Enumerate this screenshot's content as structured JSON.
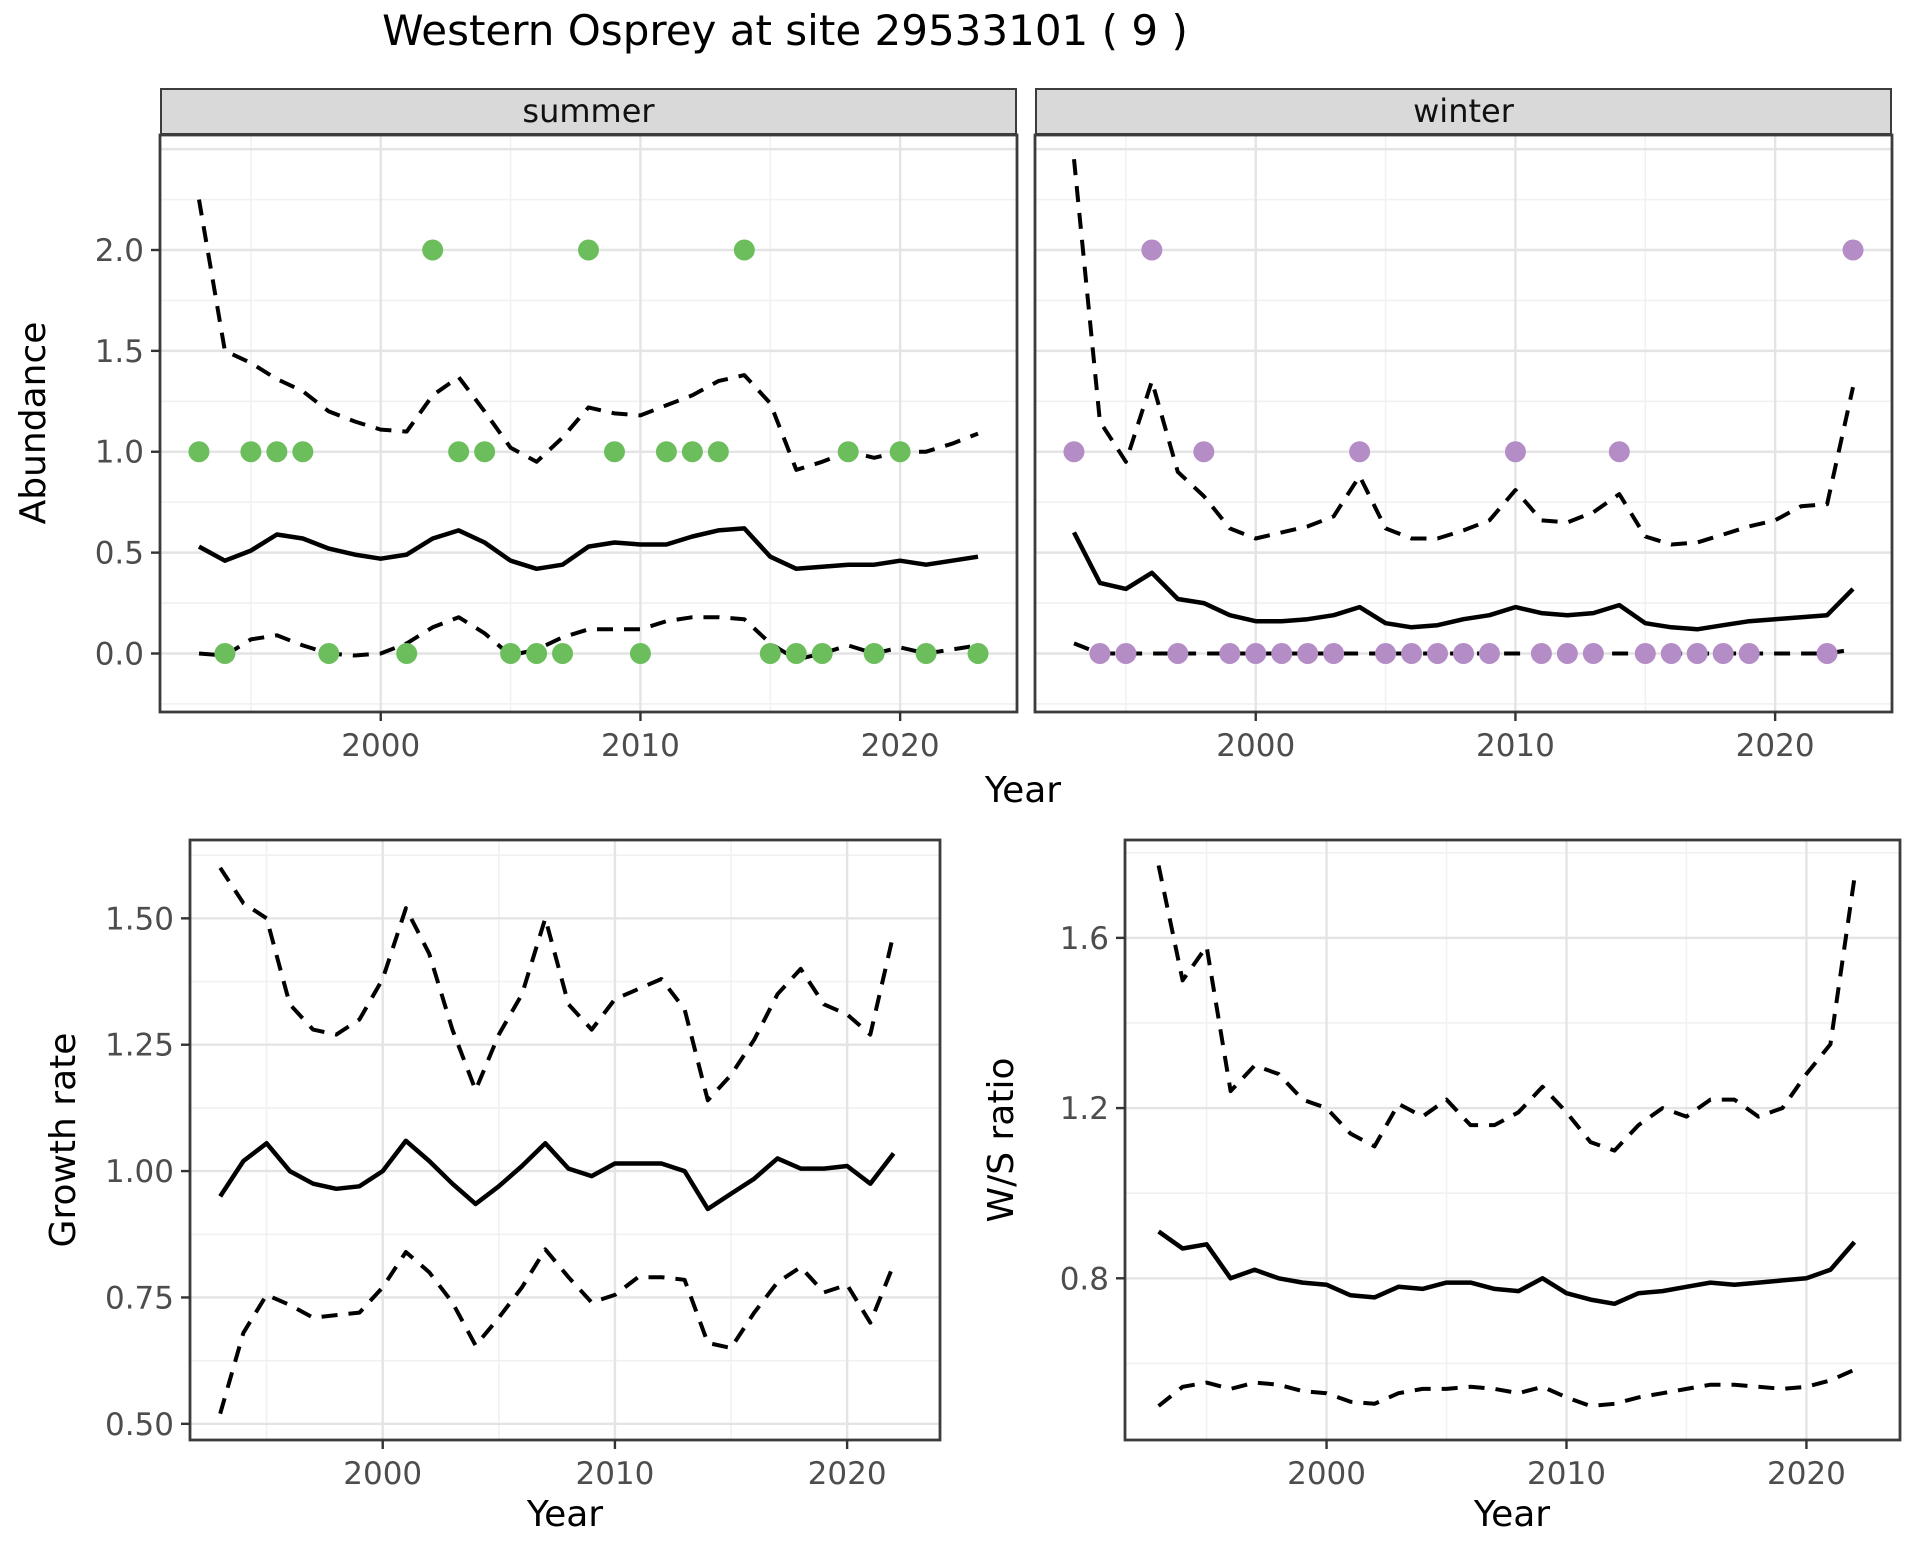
{
  "title": "Western Osprey at site 29533101 ( 9 )",
  "facets": {
    "summer": "summer",
    "winter": "winter"
  },
  "axis_labels": {
    "year": "Year",
    "abundance": "Abundance",
    "growth_rate": "Growth rate",
    "ws_ratio": "W/S ratio"
  },
  "colors": {
    "summer_points": "#6cbe5c",
    "winter_points": "#b48cc6",
    "line": "#000000",
    "strip_bg": "#d9d9d9",
    "panel_border": "#3c3c3c",
    "grid_major": "#e4e4e4",
    "grid_minor": "#f1f1f1",
    "tick_text": "#4d4d4d"
  },
  "chart_data": [
    {
      "id": "abundance-summer",
      "type": "line",
      "facet_label": "summer",
      "x_label": "Year",
      "y_label": "Abundance",
      "years": [
        1993,
        1994,
        1995,
        1996,
        1997,
        1998,
        1999,
        2000,
        2001,
        2002,
        2003,
        2004,
        2005,
        2006,
        2007,
        2008,
        2009,
        2010,
        2011,
        2012,
        2013,
        2014,
        2015,
        2016,
        2017,
        2018,
        2019,
        2020,
        2021,
        2022,
        2023
      ],
      "series": [
        {
          "name": "upper_ci",
          "style": "dashed",
          "values": [
            2.25,
            1.5,
            1.44,
            1.36,
            1.3,
            1.2,
            1.15,
            1.11,
            1.1,
            1.28,
            1.37,
            1.2,
            1.02,
            0.95,
            1.07,
            1.22,
            1.19,
            1.18,
            1.23,
            1.28,
            1.35,
            1.38,
            1.24,
            0.91,
            0.95,
            1.0,
            0.97,
            1.0,
            1.0,
            1.04,
            1.09
          ]
        },
        {
          "name": "median",
          "style": "solid",
          "values": [
            0.53,
            0.46,
            0.51,
            0.59,
            0.57,
            0.52,
            0.49,
            0.47,
            0.49,
            0.57,
            0.61,
            0.55,
            0.46,
            0.42,
            0.44,
            0.53,
            0.55,
            0.54,
            0.54,
            0.58,
            0.61,
            0.62,
            0.48,
            0.42,
            0.43,
            0.44,
            0.44,
            0.46,
            0.44,
            0.46,
            0.48
          ]
        },
        {
          "name": "lower_ci",
          "style": "dashed",
          "values": [
            0.0,
            -0.01,
            0.07,
            0.09,
            0.04,
            0.0,
            -0.01,
            0.0,
            0.05,
            0.13,
            0.18,
            0.1,
            -0.01,
            0.02,
            0.08,
            0.12,
            0.12,
            0.12,
            0.16,
            0.18,
            0.18,
            0.17,
            0.05,
            -0.03,
            0.0,
            0.04,
            0.0,
            0.03,
            0.0,
            0.02,
            0.04
          ]
        }
      ],
      "observed_counts": [
        {
          "abundance": 0,
          "years": [
            1994,
            1998,
            2001,
            2005,
            2006,
            2007,
            2010,
            2015,
            2016,
            2017,
            2019,
            2021,
            2023
          ]
        },
        {
          "abundance": 1,
          "years": [
            1993,
            1995,
            1996,
            1997,
            2003,
            2004,
            2009,
            2011,
            2012,
            2013,
            2018,
            2020
          ]
        },
        {
          "abundance": 2,
          "years": [
            2002,
            2008,
            2014
          ]
        }
      ],
      "point_color": "#6cbe5c",
      "xlim": [
        1991.5,
        2024.5
      ],
      "ylim": [
        -0.29,
        2.57
      ],
      "x_ticks": [
        2000,
        2010,
        2020
      ],
      "x_tick_labels": [
        "2000",
        "2010",
        "2020"
      ],
      "y_ticks": [
        0,
        0.5,
        1,
        1.5,
        2
      ],
      "y_tick_labels": [
        "0.0",
        "0.5",
        "1.0",
        "1.5",
        "2.0"
      ],
      "x_grid_minor": [
        1995,
        2005,
        2015
      ],
      "y_grid_major": [
        0,
        0.5,
        1,
        1.5,
        2,
        2.5
      ],
      "y_grid_minor": [
        -0.25,
        0.25,
        0.75,
        1.25,
        1.75,
        2.25
      ]
    },
    {
      "id": "abundance-winter",
      "type": "line",
      "facet_label": "winter",
      "x_label": "Year",
      "y_label": "Abundance",
      "years": [
        1993,
        1994,
        1995,
        1996,
        1997,
        1998,
        1999,
        2000,
        2001,
        2002,
        2003,
        2004,
        2005,
        2006,
        2007,
        2008,
        2009,
        2010,
        2011,
        2012,
        2013,
        2014,
        2015,
        2016,
        2017,
        2018,
        2019,
        2020,
        2021,
        2022,
        2023
      ],
      "series": [
        {
          "name": "upper_ci",
          "style": "dashed",
          "values": [
            2.45,
            1.15,
            0.95,
            1.35,
            0.9,
            0.78,
            0.62,
            0.57,
            0.6,
            0.63,
            0.68,
            0.88,
            0.62,
            0.57,
            0.57,
            0.61,
            0.66,
            0.81,
            0.66,
            0.65,
            0.7,
            0.79,
            0.58,
            0.54,
            0.55,
            0.59,
            0.63,
            0.66,
            0.73,
            0.74,
            1.32
          ]
        },
        {
          "name": "median",
          "style": "solid",
          "values": [
            0.6,
            0.35,
            0.32,
            0.4,
            0.27,
            0.25,
            0.19,
            0.16,
            0.16,
            0.17,
            0.19,
            0.23,
            0.15,
            0.13,
            0.14,
            0.17,
            0.19,
            0.23,
            0.2,
            0.19,
            0.2,
            0.24,
            0.15,
            0.13,
            0.12,
            0.14,
            0.16,
            0.17,
            0.18,
            0.19,
            0.32
          ]
        },
        {
          "name": "lower_ci",
          "style": "dashed",
          "values": [
            0.05,
            0,
            0,
            0,
            0,
            0,
            0,
            0,
            0,
            0,
            0,
            0,
            0,
            0,
            0,
            0,
            0,
            0,
            0,
            0,
            0,
            0,
            0,
            0,
            0,
            0,
            0,
            0,
            0,
            0,
            0.02
          ]
        }
      ],
      "observed_counts": [
        {
          "abundance": 0,
          "years": [
            1994,
            1995,
            1997,
            1999,
            2000,
            2001,
            2002,
            2003,
            2005,
            2006,
            2007,
            2008,
            2009,
            2011,
            2012,
            2013,
            2015,
            2016,
            2017,
            2018,
            2019,
            2022
          ]
        },
        {
          "abundance": 1,
          "years": [
            1993,
            1998,
            2004,
            2010,
            2014
          ]
        },
        {
          "abundance": 2,
          "years": [
            1996,
            2023
          ]
        }
      ],
      "point_color": "#b48cc6",
      "xlim": [
        1991.5,
        2024.5
      ],
      "ylim": [
        -0.29,
        2.57
      ],
      "x_ticks": [
        2000,
        2010,
        2020
      ],
      "x_tick_labels": [
        "2000",
        "2010",
        "2020"
      ],
      "y_ticks": [],
      "y_tick_labels": [],
      "x_grid_minor": [
        1995,
        2005,
        2015
      ],
      "y_grid_major": [
        0,
        0.5,
        1,
        1.5,
        2,
        2.5
      ],
      "y_grid_minor": [
        -0.25,
        0.25,
        0.75,
        1.25,
        1.75,
        2.25
      ]
    },
    {
      "id": "growth-rate",
      "type": "line",
      "facet_label": "",
      "x_label": "Year",
      "y_label": "Growth rate",
      "years": [
        1993,
        1994,
        1995,
        1996,
        1997,
        1998,
        1999,
        2000,
        2001,
        2002,
        2003,
        2004,
        2005,
        2006,
        2007,
        2008,
        2009,
        2010,
        2011,
        2012,
        2013,
        2014,
        2015,
        2016,
        2017,
        2018,
        2019,
        2020,
        2021,
        2022
      ],
      "series": [
        {
          "name": "upper_ci",
          "style": "dashed",
          "values": [
            1.6,
            1.53,
            1.5,
            1.33,
            1.28,
            1.27,
            1.3,
            1.38,
            1.52,
            1.43,
            1.28,
            1.16,
            1.27,
            1.35,
            1.5,
            1.33,
            1.28,
            1.34,
            1.36,
            1.38,
            1.32,
            1.14,
            1.19,
            1.26,
            1.35,
            1.4,
            1.33,
            1.31,
            1.27,
            1.47
          ]
        },
        {
          "name": "median",
          "style": "solid",
          "values": [
            0.95,
            1.02,
            1.055,
            1.0,
            0.975,
            0.965,
            0.97,
            1.0,
            1.06,
            1.02,
            0.975,
            0.935,
            0.97,
            1.01,
            1.055,
            1.005,
            0.99,
            1.015,
            1.015,
            1.015,
            1.0,
            0.925,
            0.955,
            0.985,
            1.025,
            1.005,
            1.005,
            1.01,
            0.975,
            1.035
          ]
        },
        {
          "name": "lower_ci",
          "style": "dashed",
          "values": [
            0.52,
            0.68,
            0.755,
            0.735,
            0.71,
            0.715,
            0.72,
            0.77,
            0.84,
            0.8,
            0.74,
            0.655,
            0.71,
            0.77,
            0.845,
            0.79,
            0.74,
            0.755,
            0.79,
            0.79,
            0.785,
            0.66,
            0.65,
            0.72,
            0.78,
            0.81,
            0.76,
            0.775,
            0.7,
            0.815
          ]
        }
      ],
      "observed_counts": [],
      "point_color": "",
      "xlim": [
        1991.7,
        2024.0
      ],
      "ylim": [
        0.468,
        1.655
      ],
      "x_ticks": [
        2000,
        2010,
        2020
      ],
      "x_tick_labels": [
        "2000",
        "2010",
        "2020"
      ],
      "y_ticks": [
        0.5,
        0.75,
        1.0,
        1.25,
        1.5
      ],
      "y_tick_labels": [
        "0.50",
        "0.75",
        "1.00",
        "1.25",
        "1.50"
      ],
      "x_grid_minor": [
        1995,
        2005,
        2015
      ],
      "y_grid_major": [
        0.5,
        0.75,
        1.0,
        1.25,
        1.5
      ],
      "y_grid_minor": [
        0.625,
        0.875,
        1.125,
        1.375,
        1.625
      ]
    },
    {
      "id": "ws-ratio",
      "type": "line",
      "facet_label": "",
      "x_label": "Year",
      "y_label": "W/S ratio",
      "years": [
        1993,
        1994,
        1995,
        1996,
        1997,
        1998,
        1999,
        2000,
        2001,
        2002,
        2003,
        2004,
        2005,
        2006,
        2007,
        2008,
        2009,
        2010,
        2011,
        2012,
        2013,
        2014,
        2015,
        2016,
        2017,
        2018,
        2019,
        2020,
        2021,
        2022
      ],
      "series": [
        {
          "name": "upper_ci",
          "style": "dashed",
          "values": [
            1.77,
            1.5,
            1.58,
            1.24,
            1.3,
            1.28,
            1.22,
            1.2,
            1.14,
            1.11,
            1.21,
            1.18,
            1.22,
            1.16,
            1.16,
            1.19,
            1.25,
            1.19,
            1.12,
            1.1,
            1.16,
            1.2,
            1.18,
            1.22,
            1.22,
            1.18,
            1.2,
            1.28,
            1.35,
            1.74
          ]
        },
        {
          "name": "median",
          "style": "solid",
          "values": [
            0.91,
            0.87,
            0.88,
            0.8,
            0.82,
            0.8,
            0.79,
            0.785,
            0.76,
            0.755,
            0.78,
            0.775,
            0.79,
            0.79,
            0.775,
            0.77,
            0.8,
            0.765,
            0.75,
            0.74,
            0.765,
            0.77,
            0.78,
            0.79,
            0.785,
            0.79,
            0.795,
            0.8,
            0.82,
            0.885
          ]
        },
        {
          "name": "lower_ci",
          "style": "dashed",
          "values": [
            0.5,
            0.545,
            0.555,
            0.54,
            0.555,
            0.55,
            0.535,
            0.53,
            0.51,
            0.505,
            0.53,
            0.54,
            0.54,
            0.545,
            0.54,
            0.53,
            0.545,
            0.52,
            0.5,
            0.505,
            0.52,
            0.53,
            0.54,
            0.55,
            0.55,
            0.545,
            0.54,
            0.545,
            0.56,
            0.585
          ]
        }
      ],
      "observed_counts": [],
      "point_color": "",
      "xlim": [
        1991.6,
        2023.9
      ],
      "ylim": [
        0.42,
        1.83
      ],
      "x_ticks": [
        2000,
        2010,
        2020
      ],
      "x_tick_labels": [
        "2000",
        "2010",
        "2020"
      ],
      "y_ticks": [
        0.8,
        1.2,
        1.6
      ],
      "y_tick_labels": [
        "0.8",
        "1.2",
        "1.6"
      ],
      "x_grid_minor": [
        1995,
        2005,
        2015
      ],
      "y_grid_major": [
        0.8,
        1.2,
        1.6
      ],
      "y_grid_minor": [
        0.6,
        1.0,
        1.4,
        1.8
      ]
    }
  ]
}
